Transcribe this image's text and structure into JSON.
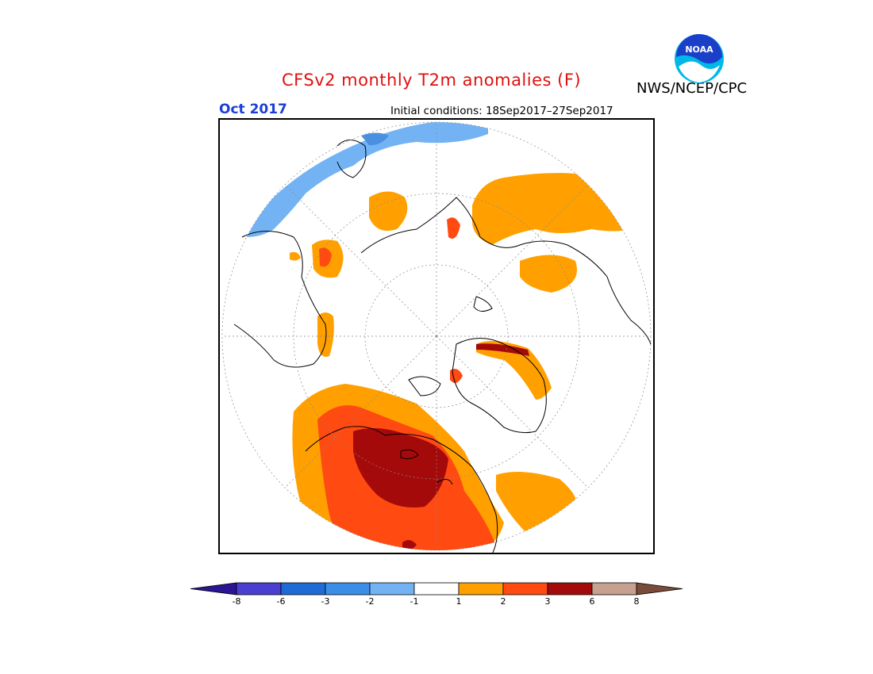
{
  "header": {
    "title": "CFSv2 monthly T2m anomalies (F)",
    "agency": "NWS/NCEP/CPC",
    "month": "Oct 2017",
    "initial_conditions": "Initial conditions: 18Sep2017–27Sep2017"
  },
  "logo": {
    "text": "NOAA",
    "icon": "noaa-logo-icon"
  },
  "colors": {
    "title": "#e01010",
    "month": "#1a3fd6",
    "scale": [
      "#2c1594",
      "#4a3fd0",
      "#1f6bd6",
      "#3a8ee8",
      "#73b3f4",
      "#ffffff",
      "#ffa000",
      "#ff4a12",
      "#a50a0a",
      "#c8a090",
      "#7a4a3a"
    ]
  },
  "map": {
    "projection": "north polar stereographic",
    "variable": "T2m anomaly (F)"
  },
  "colorbar": {
    "labels": [
      "-8",
      "-6",
      "-3",
      "-2",
      "-1",
      "1",
      "2",
      "3",
      "6",
      "8"
    ]
  }
}
